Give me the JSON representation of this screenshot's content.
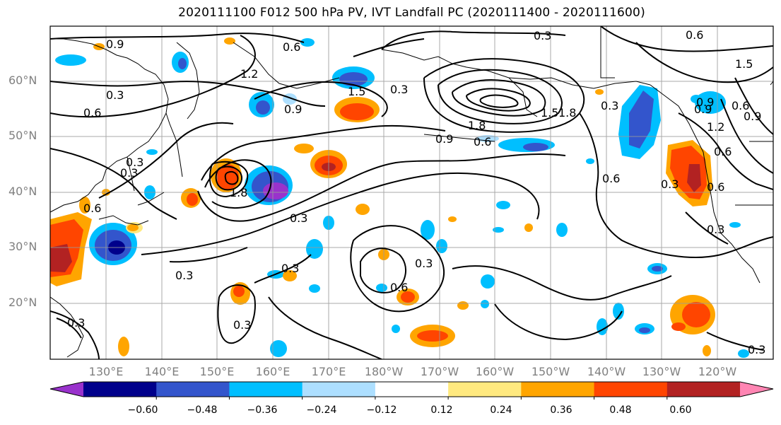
{
  "title": "2020111100 F012 500 hPa PV, IVT Landfall PC (2020111400 - 2020111600)",
  "latitude_labels": [
    "60°N",
    "50°N",
    "40°N",
    "30°N",
    "20°N"
  ],
  "longitude_labels": [
    "130°E",
    "140°E",
    "150°E",
    "160°E",
    "170°E",
    "180°W",
    "170°W",
    "160°W",
    "150°W",
    "140°W",
    "130°W",
    "120°W"
  ],
  "contour_labels": [
    "0.9",
    "0.6",
    "0.3",
    "0.6",
    "1.2",
    "1.5",
    "0.3",
    "0.6",
    "0.9",
    "0.3",
    "1.8",
    "1.5",
    "1.8",
    "0.9",
    "0.6",
    "0.3",
    "0.6",
    "0.9",
    "0.3",
    "0.6",
    "0.3",
    "0.3",
    "1.8",
    "0.3",
    "0.3",
    "0.6",
    "0.3",
    "0.6",
    "0.3",
    "0.3",
    "0.3",
    "0.3",
    "0.6",
    "0.3",
    "0.9",
    "1.2",
    "1.5",
    "0.9",
    "0.6"
  ],
  "colorbar": {
    "colors": [
      "#9932CC",
      "#00008B",
      "#3355CC",
      "#00BFFF",
      "#ADDFFF",
      "#FFFFFF",
      "#FFE97F",
      "#FFA500",
      "#FF4500",
      "#B22222",
      "#FF85B3"
    ],
    "labels": [
      "−0.60",
      "−0.48",
      "−0.36",
      "−0.24",
      "−0.12",
      "0.12",
      "0.24",
      "0.36",
      "0.48",
      "0.60"
    ],
    "extend": "both"
  },
  "map": {
    "domain": "North Pacific",
    "fields": [
      "500 hPa PV principal component (shaded)",
      "IVT landfall PC (contours)"
    ],
    "grid": true
  }
}
